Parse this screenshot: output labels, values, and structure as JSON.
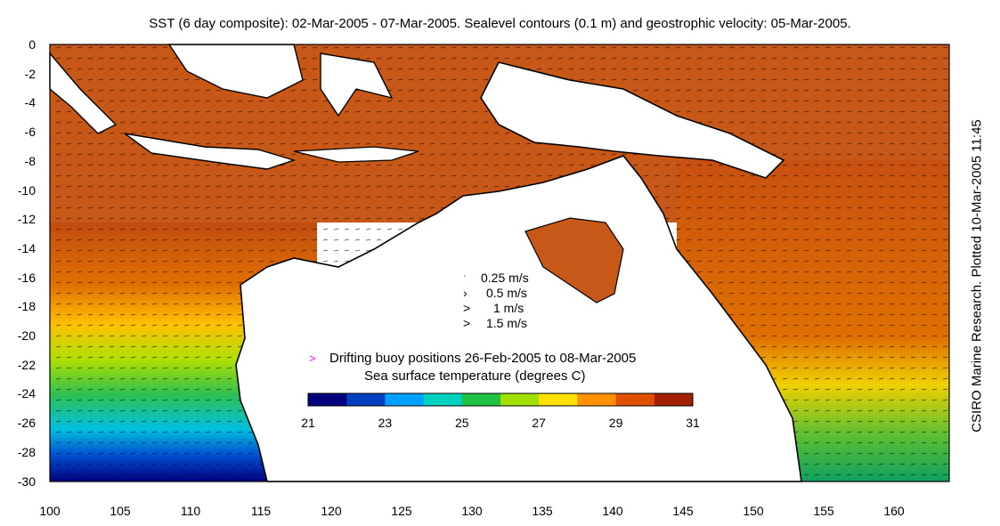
{
  "title": "SST (6 day composite): 02-Mar-2005 - 07-Mar-2005. Sealevel contours (0.1 m) and geostrophic velocity: 05-Mar-2005.",
  "credit": "CSIRO Marine Research. Plotted 10-Mar-2005 11:45",
  "y_ticks": [
    "0",
    "-2",
    "-4",
    "-6",
    "-8",
    "-10",
    "-12",
    "-14",
    "-16",
    "-18",
    "-20",
    "-22",
    "-24",
    "-26",
    "-28",
    "-30"
  ],
  "x_ticks": [
    "100",
    "105",
    "110",
    "115",
    "120",
    "125",
    "130",
    "135",
    "140",
    "145",
    "150",
    "155",
    "160"
  ],
  "velocity_legend": [
    {
      "glyph": "ˑ",
      "label": "0.25 m/s"
    },
    {
      "glyph": "›",
      "label": "0.5 m/s"
    },
    {
      "glyph": ">",
      "label": "1 m/s"
    },
    {
      "glyph": ">",
      "label": "1.5 m/s"
    }
  ],
  "buoy_legend": {
    "marker": ">",
    "marker_color": "#ff00ff",
    "label": "Drifting buoy positions 26-Feb-2005 to 08-Mar-2005"
  },
  "colorbar": {
    "label": "Sea surface temperature (degrees C)",
    "ticks": [
      "21",
      "23",
      "25",
      "27",
      "29",
      "31"
    ],
    "colors": [
      "#00007f",
      "#0040c0",
      "#00a0ff",
      "#00d0c0",
      "#20c040",
      "#a0e000",
      "#ffe000",
      "#ff9000",
      "#e05000",
      "#a02000"
    ]
  },
  "map": {
    "lon_range": [
      100,
      164
    ],
    "lat_range": [
      -30,
      0
    ],
    "land_color": "#ffffff",
    "coast_color": "#000000"
  }
}
